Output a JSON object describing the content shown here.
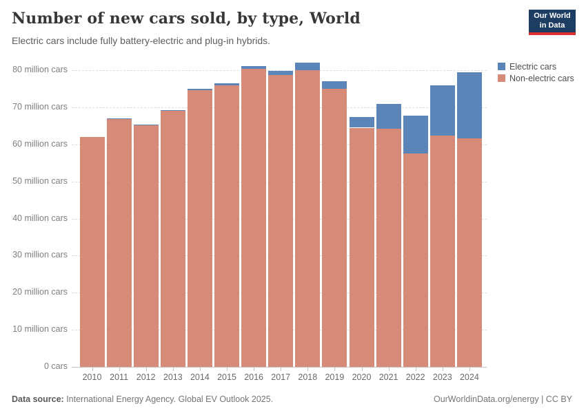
{
  "header": {
    "title": "Number of new cars sold, by type, World",
    "subtitle": "Electric cars include fully battery-electric and plug-in hybrids.",
    "logo": {
      "line1": "Our World",
      "line2": "in Data"
    }
  },
  "legend": {
    "items": [
      {
        "label": "Electric cars",
        "color": "#5b85b8"
      },
      {
        "label": "Non-electric cars",
        "color": "#d68b78"
      }
    ]
  },
  "chart_data": {
    "type": "bar",
    "stacked": true,
    "title": "Number of new cars sold, by type, World",
    "categories": [
      "2010",
      "2011",
      "2012",
      "2013",
      "2014",
      "2015",
      "2016",
      "2017",
      "2018",
      "2019",
      "2020",
      "2021",
      "2022",
      "2023",
      "2024"
    ],
    "series": [
      {
        "name": "Electric cars",
        "color": "#5b85b8",
        "values": [
          0.01,
          0.05,
          0.12,
          0.2,
          0.32,
          0.55,
          0.8,
          1.2,
          2.0,
          2.1,
          2.9,
          6.6,
          10.2,
          13.7,
          17.7
        ]
      },
      {
        "name": "Non-electric cars",
        "color": "#d68b78",
        "values": [
          62.0,
          67.0,
          65.3,
          69.1,
          74.7,
          75.9,
          80.4,
          78.7,
          80.0,
          74.9,
          64.5,
          64.3,
          57.6,
          62.3,
          61.7
        ]
      }
    ],
    "ylim": [
      0,
      80
    ],
    "y_ticks": [
      0,
      10,
      20,
      30,
      40,
      50,
      60,
      70,
      80
    ],
    "y_tick_labels": [
      "0 cars",
      "10 million cars",
      "20 million cars",
      "30 million cars",
      "40 million cars",
      "50 million cars",
      "60 million cars",
      "70 million cars",
      "80 million cars"
    ],
    "grid": "horizontal-dashed",
    "legend_position": "top-right"
  },
  "footer": {
    "datasource_label": "Data source:",
    "datasource_text": " International Energy Agency. Global EV Outlook 2025.",
    "link_text": "OurWorldinData.org/energy",
    "separator": " | ",
    "license": "CC BY"
  }
}
